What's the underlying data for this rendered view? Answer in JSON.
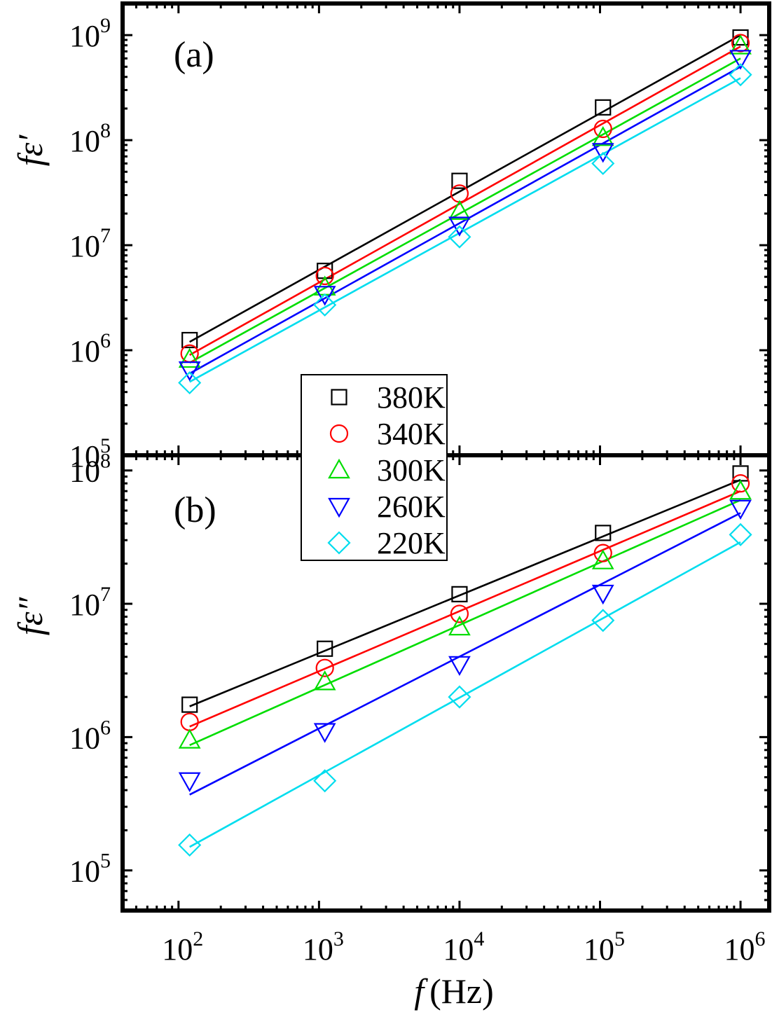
{
  "chart_data": [
    {
      "type": "scatter",
      "panel_label": "(a)",
      "ylabel": "fε′",
      "x_scale": "log",
      "y_scale": "log",
      "xlim": [
        40,
        1600000
      ],
      "ylim": [
        100000,
        2000000000
      ],
      "y_ticks": [
        {
          "value": 100000,
          "base": "10",
          "exp": "5"
        },
        {
          "value": 1000000,
          "base": "10",
          "exp": "6"
        },
        {
          "value": 10000000,
          "base": "10",
          "exp": "7"
        },
        {
          "value": 100000000,
          "base": "10",
          "exp": "8"
        },
        {
          "value": 1000000000,
          "base": "10",
          "exp": "9"
        }
      ],
      "series": [
        {
          "name": "380K",
          "marker": "square",
          "color": "#000000",
          "points": [
            [
              120,
              1250000
            ],
            [
              1100,
              5700000
            ],
            [
              10000,
              41000000
            ],
            [
              105000,
              205000000
            ],
            [
              1000000,
              950000000
            ]
          ],
          "fit": [
            [
              120,
              1200000
            ],
            [
              1000000,
              1000000000
            ]
          ]
        },
        {
          "name": "340K",
          "marker": "circle",
          "color": "#ff0000",
          "points": [
            [
              120,
              930000
            ],
            [
              1100,
              5100000
            ],
            [
              10000,
              31000000
            ],
            [
              105000,
              128000000
            ],
            [
              1000000,
              840000000
            ]
          ],
          "fit": [
            [
              120,
              900000
            ],
            [
              1000000,
              780000000
            ]
          ]
        },
        {
          "name": "300K",
          "marker": "triangle-up",
          "color": "#00dd00",
          "points": [
            [
              120,
              820000
            ],
            [
              1100,
              4000000
            ],
            [
              10000,
              21000000
            ],
            [
              105000,
              106000000
            ],
            [
              1000000,
              790000000
            ]
          ],
          "fit": [
            [
              120,
              760000
            ],
            [
              1000000,
              600000000
            ]
          ]
        },
        {
          "name": "260K",
          "marker": "triangle-down",
          "color": "#0000ff",
          "points": [
            [
              120,
              650000
            ],
            [
              1100,
              3400000
            ],
            [
              10000,
              15500000
            ],
            [
              105000,
              78000000
            ],
            [
              1000000,
              600000000
            ]
          ],
          "fit": [
            [
              120,
              600000
            ],
            [
              1000000,
              500000000
            ]
          ]
        },
        {
          "name": "220K",
          "marker": "diamond",
          "color": "#00ddee",
          "points": [
            [
              120,
              490000
            ],
            [
              1100,
              2700000
            ],
            [
              10000,
              12000000
            ],
            [
              105000,
              60000000
            ],
            [
              1000000,
              420000000
            ]
          ],
          "fit": [
            [
              120,
              500000
            ],
            [
              1000000,
              390000000
            ]
          ]
        }
      ]
    },
    {
      "type": "scatter",
      "panel_label": "(b)",
      "ylabel": "fε″",
      "xlabel_italic": "f",
      "xlabel_unit": "(Hz)",
      "x_scale": "log",
      "y_scale": "log",
      "xlim": [
        40,
        1600000
      ],
      "ylim": [
        50000,
        130000000
      ],
      "x_ticks": [
        {
          "value": 100,
          "base": "10",
          "exp": "2"
        },
        {
          "value": 1000,
          "base": "10",
          "exp": "3"
        },
        {
          "value": 10000,
          "base": "10",
          "exp": "4"
        },
        {
          "value": 100000,
          "base": "10",
          "exp": "5"
        },
        {
          "value": 1000000,
          "base": "10",
          "exp": "6"
        }
      ],
      "y_ticks": [
        {
          "value": 100000,
          "base": "10",
          "exp": "5"
        },
        {
          "value": 1000000,
          "base": "10",
          "exp": "6"
        },
        {
          "value": 10000000,
          "base": "10",
          "exp": "7"
        },
        {
          "value": 100000000,
          "base": "10",
          "exp": "8"
        }
      ],
      "series": [
        {
          "name": "380K",
          "marker": "square",
          "color": "#000000",
          "points": [
            [
              120,
              1750000
            ],
            [
              1100,
              4600000
            ],
            [
              10000,
              11800000
            ],
            [
              105000,
              34000000
            ],
            [
              1000000,
              95000000
            ]
          ],
          "fit": [
            [
              120,
              1700000
            ],
            [
              1000000,
              85000000
            ]
          ]
        },
        {
          "name": "340K",
          "marker": "circle",
          "color": "#ff0000",
          "points": [
            [
              120,
              1300000
            ],
            [
              1100,
              3300000
            ],
            [
              10000,
              8400000
            ],
            [
              105000,
              24000000
            ],
            [
              1000000,
              80000000
            ]
          ],
          "fit": [
            [
              120,
              1200000
            ],
            [
              1000000,
              70000000
            ]
          ]
        },
        {
          "name": "300K",
          "marker": "triangle-up",
          "color": "#00dd00",
          "points": [
            [
              120,
              950000
            ],
            [
              1100,
              2600000
            ],
            [
              10000,
              6700000
            ],
            [
              105000,
              21000000
            ],
            [
              1000000,
              70000000
            ]
          ],
          "fit": [
            [
              120,
              870000
            ],
            [
              1000000,
              60000000
            ]
          ]
        },
        {
          "name": "260K",
          "marker": "triangle-down",
          "color": "#0000ff",
          "points": [
            [
              120,
              470000
            ],
            [
              1100,
              1100000
            ],
            [
              10000,
              3500000
            ],
            [
              105000,
              12000000
            ],
            [
              1000000,
              52000000
            ]
          ],
          "fit": [
            [
              120,
              370000
            ],
            [
              1000000,
              48000000
            ]
          ]
        },
        {
          "name": "220K",
          "marker": "diamond",
          "color": "#00ddee",
          "points": [
            [
              120,
              155000
            ],
            [
              1100,
              470000
            ],
            [
              10000,
              2000000
            ],
            [
              105000,
              7500000
            ],
            [
              1000000,
              33000000
            ]
          ],
          "fit": [
            [
              120,
              150000
            ],
            [
              1000000,
              29000000
            ]
          ]
        }
      ]
    }
  ],
  "legend": {
    "placement": "center-left, spanning the two panels",
    "entries": [
      "380K",
      "340K",
      "300K",
      "260K",
      "220K"
    ]
  }
}
